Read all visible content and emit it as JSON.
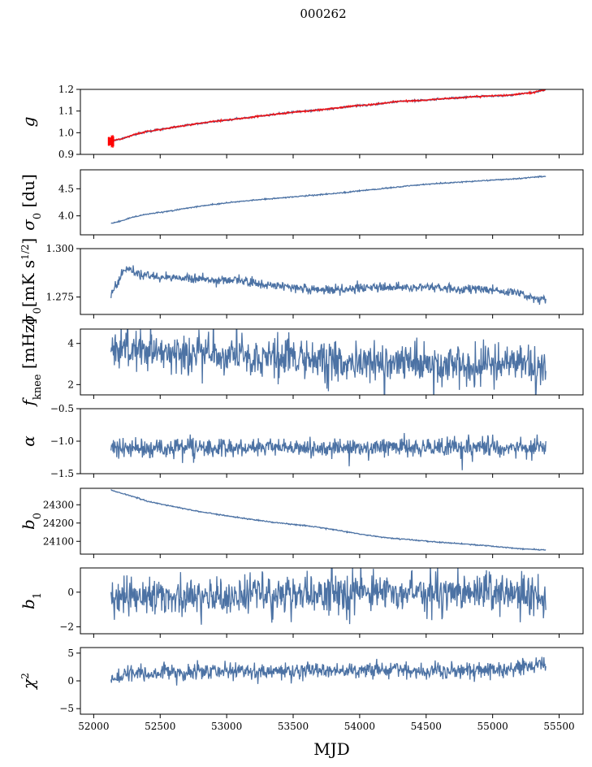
{
  "figure": {
    "title": "000262"
  },
  "chart_data": [
    {
      "id": "g",
      "type": "line",
      "ylabel_parts": [
        {
          "t": "g",
          "italic": true
        }
      ],
      "ylim": [
        0.9,
        1.2
      ],
      "yticks": [
        0.9,
        1.0,
        1.1,
        1.2
      ],
      "ytick_labels": [
        "0.9",
        "1.0",
        "1.1",
        "1.2"
      ],
      "xlim": [
        51900,
        55680
      ],
      "xticks_shown": false,
      "colors": {
        "line": "#4c72a4",
        "overlay": "#ff0000"
      },
      "series": [
        {
          "x": [
            52120,
            52200,
            52300,
            52400,
            52500,
            52700,
            52900,
            53100,
            53300,
            53500,
            53700,
            53900,
            54100,
            54300,
            54500,
            54700,
            54900,
            55100,
            55300,
            55400
          ],
          "values": [
            0.96,
            0.97,
            0.99,
            1.005,
            1.015,
            1.035,
            1.052,
            1.065,
            1.08,
            1.095,
            1.105,
            1.12,
            1.13,
            1.145,
            1.15,
            1.16,
            1.168,
            1.172,
            1.185,
            1.2
          ]
        }
      ],
      "overlay": {
        "type": "errorbar",
        "x_start": 52110,
        "x_end": 52150,
        "y_min": 0.93,
        "y_max": 0.99
      }
    },
    {
      "id": "sigma0_du",
      "type": "line",
      "ylabel_parts": [
        {
          "t": "σ",
          "italic": true
        },
        {
          "t": "0",
          "sub": true
        },
        {
          "t": " [du]"
        }
      ],
      "ylim": [
        3.65,
        4.85
      ],
      "yticks": [
        4.0,
        4.5
      ],
      "ytick_labels": [
        "4.0",
        "4.5"
      ],
      "xlim": [
        51900,
        55680
      ],
      "xticks_shown": false,
      "colors": {
        "line": "#4c72a4"
      },
      "series": [
        {
          "x": [
            52130,
            52200,
            52300,
            52400,
            52600,
            52800,
            53000,
            53200,
            53400,
            53600,
            53800,
            54000,
            54200,
            54400,
            54600,
            54800,
            55000,
            55200,
            55400
          ],
          "values": [
            3.86,
            3.9,
            3.98,
            4.03,
            4.1,
            4.18,
            4.24,
            4.29,
            4.33,
            4.37,
            4.41,
            4.46,
            4.51,
            4.56,
            4.6,
            4.63,
            4.66,
            4.69,
            4.73
          ]
        }
      ]
    },
    {
      "id": "sigma0_mk",
      "type": "line",
      "ylabel_parts": [
        {
          "t": "σ",
          "italic": true
        },
        {
          "t": "0",
          "sub": true
        },
        {
          "t": "[mK s"
        },
        {
          "t": "1/2",
          "sup": true
        },
        {
          "t": "]"
        }
      ],
      "ylim": [
        1.266,
        1.3
      ],
      "yticks": [
        1.275,
        1.3
      ],
      "ytick_labels": [
        "1.275",
        "1.300"
      ],
      "xlim": [
        51900,
        55680
      ],
      "xticks_shown": false,
      "colors": {
        "line": "#4c72a4"
      },
      "series": [
        {
          "x": [
            52130,
            52180,
            52250,
            52350,
            52500,
            52700,
            52900,
            53100,
            53300,
            53500,
            53700,
            53900,
            54100,
            54300,
            54500,
            54700,
            54900,
            55100,
            55300,
            55400
          ],
          "values": [
            1.276,
            1.283,
            1.29,
            1.287,
            1.285,
            1.285,
            1.284,
            1.284,
            1.281,
            1.28,
            1.279,
            1.279,
            1.28,
            1.28,
            1.28,
            1.279,
            1.279,
            1.278,
            1.275,
            1.274
          ]
        }
      ]
    },
    {
      "id": "fknee",
      "type": "line",
      "ylabel_parts": [
        {
          "t": "f",
          "italic": true
        },
        {
          "t": "knee",
          "sub": true
        },
        {
          "t": " [mHz]"
        }
      ],
      "ylim": [
        1.5,
        4.7
      ],
      "yticks": [
        2,
        4
      ],
      "ytick_labels": [
        "2",
        "4"
      ],
      "xlim": [
        51900,
        55680
      ],
      "xticks_shown": false,
      "colors": {
        "line": "#4c72a4"
      },
      "series": [
        {
          "x": [
            52130,
            52300,
            52500,
            52700,
            52900,
            53100,
            53300,
            53500,
            53700,
            53900,
            54100,
            54300,
            54500,
            54700,
            54900,
            55100,
            55300,
            55400
          ],
          "values": [
            3.9,
            3.7,
            3.6,
            3.5,
            3.4,
            3.35,
            3.3,
            3.25,
            3.2,
            3.15,
            3.1,
            3.1,
            3.05,
            3.0,
            3.0,
            3.0,
            2.95,
            2.7
          ]
        }
      ]
    },
    {
      "id": "alpha",
      "type": "line",
      "ylabel_parts": [
        {
          "t": "α",
          "italic": true
        }
      ],
      "ylim": [
        -1.5,
        -0.5
      ],
      "yticks": [
        -1.5,
        -1.0,
        -0.5
      ],
      "ytick_labels": [
        "−1.5",
        "−1.0",
        "−0.5"
      ],
      "xlim": [
        51900,
        55680
      ],
      "xticks_shown": false,
      "colors": {
        "line": "#4c72a4"
      },
      "series": [
        {
          "x": [
            52130,
            53000,
            54000,
            55000,
            55400
          ],
          "values": [
            -1.1,
            -1.1,
            -1.1,
            -1.1,
            -1.1
          ]
        }
      ]
    },
    {
      "id": "b0",
      "type": "line",
      "ylabel_parts": [
        {
          "t": "b",
          "italic": true
        },
        {
          "t": "0",
          "sub": true
        }
      ],
      "ylim": [
        24030,
        24390
      ],
      "yticks": [
        24100,
        24200,
        24300
      ],
      "ytick_labels": [
        "24100",
        "24200",
        "24300"
      ],
      "xlim": [
        51900,
        55680
      ],
      "xticks_shown": false,
      "colors": {
        "line": "#4c72a4"
      },
      "series": [
        {
          "x": [
            52130,
            52200,
            52300,
            52400,
            52600,
            52800,
            53000,
            53200,
            53400,
            53600,
            53800,
            54000,
            54200,
            54400,
            54600,
            54800,
            55000,
            55200,
            55400
          ],
          "values": [
            24380,
            24365,
            24345,
            24320,
            24290,
            24262,
            24240,
            24218,
            24200,
            24185,
            24165,
            24140,
            24120,
            24108,
            24095,
            24085,
            24073,
            24060,
            24052
          ]
        }
      ]
    },
    {
      "id": "b1",
      "type": "line",
      "ylabel_parts": [
        {
          "t": "b",
          "italic": true
        },
        {
          "t": "1",
          "sub": true
        }
      ],
      "ylim": [
        -2.4,
        1.4
      ],
      "yticks": [
        -2,
        0
      ],
      "ytick_labels": [
        "−2",
        "0"
      ],
      "xlim": [
        51900,
        55680
      ],
      "xticks_shown": false,
      "colors": {
        "line": "#4c72a4"
      },
      "series": [
        {
          "x": [
            52130,
            53000,
            54000,
            55000,
            55400
          ],
          "values": [
            -0.3,
            -0.2,
            -0.1,
            -0.1,
            -0.2
          ]
        }
      ]
    },
    {
      "id": "chi2",
      "type": "line",
      "ylabel_parts": [
        {
          "t": "χ",
          "italic": true
        },
        {
          "t": "2",
          "sup": true
        }
      ],
      "ylim": [
        -6,
        6
      ],
      "yticks": [
        -5,
        0,
        5
      ],
      "ytick_labels": [
        "−5",
        "0",
        "5"
      ],
      "xlim": [
        51900,
        55680
      ],
      "xticks": [
        52000,
        52500,
        53000,
        53500,
        54000,
        54500,
        55000,
        55500
      ],
      "xtick_labels": [
        "52000",
        "52500",
        "53000",
        "53500",
        "54000",
        "54500",
        "55000",
        "55500"
      ],
      "xticks_shown": true,
      "xlabel": "MJD",
      "colors": {
        "line": "#4c72a4"
      },
      "series": [
        {
          "x": [
            52130,
            52300,
            52600,
            53000,
            53400,
            53800,
            54200,
            54600,
            55000,
            55400
          ],
          "values": [
            0.5,
            1.2,
            1.5,
            1.6,
            1.8,
            2.0,
            1.9,
            1.8,
            2.0,
            2.8
          ]
        }
      ]
    }
  ]
}
